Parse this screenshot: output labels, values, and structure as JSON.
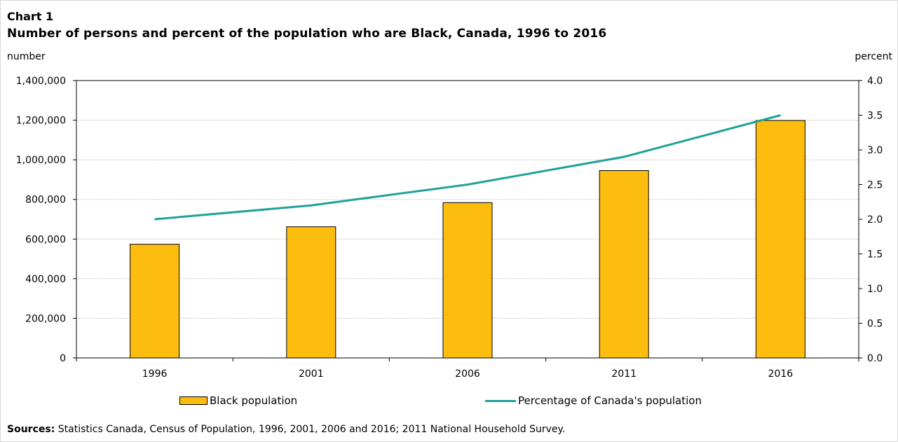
{
  "header": {
    "chart_number": "Chart 1",
    "title": "Number of persons and percent of the population who are Black, Canada, 1996 to 2016"
  },
  "axes": {
    "left_unit": "number",
    "right_unit": "percent"
  },
  "legend": {
    "bar_label": "Black population",
    "line_label": "Percentage of Canada's population"
  },
  "footer": {
    "sources_label": "Sources:",
    "sources_text": " Statistics Canada, Census of Population, 1996, 2001, 2006 and 2016; 2011 National Household Survey."
  },
  "colors": {
    "bar": "#FDBD0F",
    "line": "#1FA19A",
    "grid": "#bfbfbf"
  },
  "chart_data": {
    "type": "bar",
    "title": "Number of persons and percent of the population who are Black, Canada, 1996 to 2016",
    "categories": [
      "1996",
      "2001",
      "2006",
      "2011",
      "2016"
    ],
    "series": [
      {
        "name": "Black population",
        "type": "bar",
        "axis": "left",
        "values": [
          573860,
          662215,
          783795,
          945665,
          1198540
        ]
      },
      {
        "name": "Percentage of Canada's population",
        "type": "line",
        "axis": "right",
        "values": [
          2.0,
          2.2,
          2.5,
          2.9,
          3.5
        ]
      }
    ],
    "y_left": {
      "label": "number",
      "range": [
        0,
        1400000
      ],
      "ticks": [
        0,
        200000,
        400000,
        600000,
        800000,
        1000000,
        1200000,
        1400000
      ],
      "tick_labels": [
        "0",
        "200,000",
        "400,000",
        "600,000",
        "800,000",
        "1,000,000",
        "1,200,000",
        "1,400,000"
      ]
    },
    "y_right": {
      "label": "percent",
      "range": [
        0,
        4.0
      ],
      "ticks": [
        0,
        0.5,
        1.0,
        1.5,
        2.0,
        2.5,
        3.0,
        3.5,
        4.0
      ],
      "tick_labels": [
        "0.0",
        "0.5",
        "1.0",
        "1.5",
        "2.0",
        "2.5",
        "3.0",
        "3.5",
        "4.0"
      ]
    },
    "grid": true,
    "legend_position": "bottom"
  }
}
